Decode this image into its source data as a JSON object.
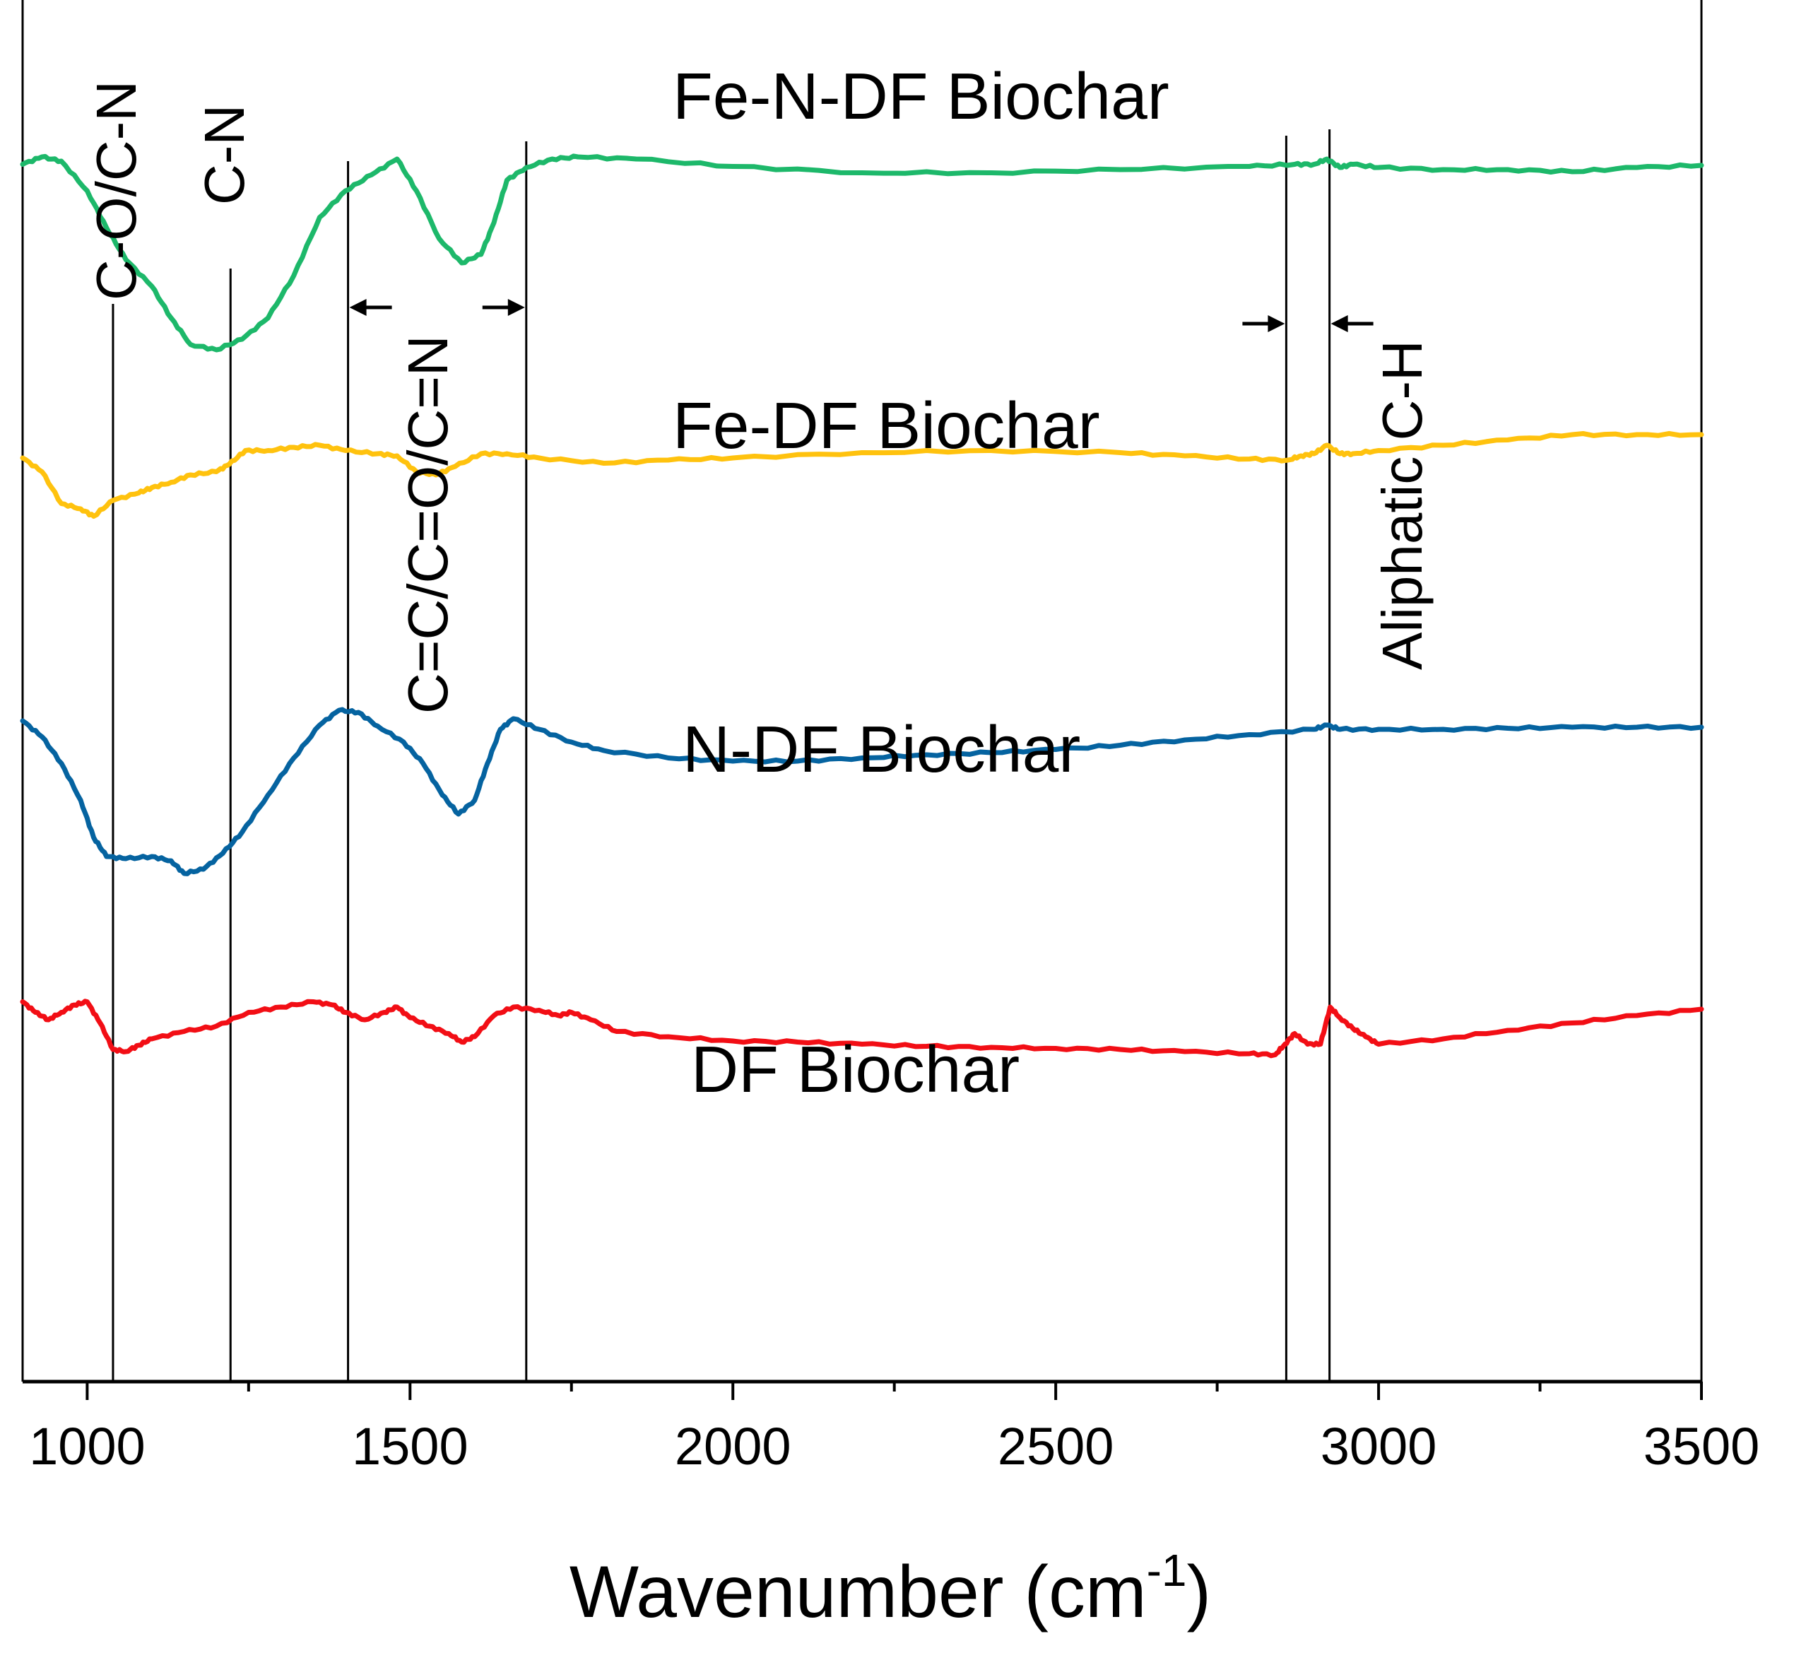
{
  "chart_data": {
    "type": "line",
    "title": "",
    "xlabel": "Wavenumber (cm",
    "xlabel_sup": "-1",
    "xlabel_close": ")",
    "ylabel": "",
    "xlim": [
      900,
      3500
    ],
    "x_ticks": [
      1000,
      1500,
      2000,
      2500,
      3000,
      3500
    ],
    "x_tick_labels": [
      "1000",
      "1500",
      "2000",
      "2500",
      "3000",
      "3500"
    ],
    "x_minor_step": 250,
    "y_axis_visible": false,
    "grid": false,
    "legend": "none",
    "series": [
      {
        "name": "Fe-N-DF Biochar",
        "color": "#1DB86A",
        "points": [
          [
            900,
            155
          ],
          [
            930,
            148
          ],
          [
            960,
            152
          ],
          [
            1000,
            180
          ],
          [
            1030,
            215
          ],
          [
            1060,
            245
          ],
          [
            1100,
            270
          ],
          [
            1130,
            300
          ],
          [
            1160,
            325
          ],
          [
            1200,
            330
          ],
          [
            1240,
            320
          ],
          [
            1280,
            300
          ],
          [
            1320,
            260
          ],
          [
            1360,
            205
          ],
          [
            1400,
            180
          ],
          [
            1440,
            165
          ],
          [
            1480,
            150
          ],
          [
            1510,
            180
          ],
          [
            1545,
            225
          ],
          [
            1580,
            248
          ],
          [
            1610,
            240
          ],
          [
            1630,
            210
          ],
          [
            1650,
            170
          ],
          [
            1680,
            158
          ],
          [
            1720,
            150
          ],
          [
            1760,
            148
          ],
          [
            1850,
            150
          ],
          [
            2000,
            157
          ],
          [
            2200,
            163
          ],
          [
            2400,
            163
          ],
          [
            2600,
            160
          ],
          [
            2800,
            157
          ],
          [
            2870,
            155
          ],
          [
            2900,
            155
          ],
          [
            2920,
            150
          ],
          [
            2940,
            158
          ],
          [
            2960,
            155
          ],
          [
            3000,
            158
          ],
          [
            3100,
            160
          ],
          [
            3200,
            160
          ],
          [
            3300,
            162
          ],
          [
            3400,
            158
          ],
          [
            3500,
            156
          ]
        ]
      },
      {
        "name": "Fe-DF Biochar",
        "color": "#FFC20E",
        "points": [
          [
            900,
            432
          ],
          [
            930,
            445
          ],
          [
            960,
            475
          ],
          [
            990,
            480
          ],
          [
            1010,
            487
          ],
          [
            1040,
            472
          ],
          [
            1080,
            465
          ],
          [
            1100,
            460
          ],
          [
            1130,
            455
          ],
          [
            1160,
            448
          ],
          [
            1200,
            445
          ],
          [
            1220,
            438
          ],
          [
            1245,
            425
          ],
          [
            1280,
            425
          ],
          [
            1320,
            422
          ],
          [
            1360,
            420
          ],
          [
            1400,
            425
          ],
          [
            1450,
            428
          ],
          [
            1480,
            430
          ],
          [
            1510,
            445
          ],
          [
            1540,
            448
          ],
          [
            1570,
            440
          ],
          [
            1610,
            428
          ],
          [
            1650,
            428
          ],
          [
            1700,
            432
          ],
          [
            1800,
            437
          ],
          [
            1900,
            434
          ],
          [
            2000,
            432
          ],
          [
            2200,
            427
          ],
          [
            2400,
            425
          ],
          [
            2600,
            427
          ],
          [
            2700,
            430
          ],
          [
            2800,
            433
          ],
          [
            2860,
            434
          ],
          [
            2880,
            430
          ],
          [
            2900,
            428
          ],
          [
            2920,
            420
          ],
          [
            2940,
            428
          ],
          [
            2960,
            428
          ],
          [
            3000,
            425
          ],
          [
            3100,
            420
          ],
          [
            3200,
            415
          ],
          [
            3300,
            410
          ],
          [
            3400,
            410
          ],
          [
            3500,
            410
          ]
        ]
      },
      {
        "name": "N-DF Biochar",
        "color": "#0563A0",
        "points": [
          [
            900,
            680
          ],
          [
            930,
            695
          ],
          [
            960,
            720
          ],
          [
            990,
            755
          ],
          [
            1010,
            790
          ],
          [
            1030,
            808
          ],
          [
            1060,
            810
          ],
          [
            1100,
            808
          ],
          [
            1130,
            812
          ],
          [
            1150,
            824
          ],
          [
            1180,
            820
          ],
          [
            1210,
            805
          ],
          [
            1240,
            785
          ],
          [
            1280,
            750
          ],
          [
            1320,
            715
          ],
          [
            1360,
            684
          ],
          [
            1390,
            670
          ],
          [
            1420,
            672
          ],
          [
            1450,
            685
          ],
          [
            1490,
            700
          ],
          [
            1520,
            720
          ],
          [
            1550,
            750
          ],
          [
            1575,
            768
          ],
          [
            1600,
            755
          ],
          [
            1620,
            720
          ],
          [
            1640,
            688
          ],
          [
            1660,
            678
          ],
          [
            1700,
            688
          ],
          [
            1750,
            700
          ],
          [
            1800,
            708
          ],
          [
            1900,
            715
          ],
          [
            2000,
            718
          ],
          [
            2100,
            718
          ],
          [
            2200,
            715
          ],
          [
            2300,
            712
          ],
          [
            2400,
            710
          ],
          [
            2500,
            707
          ],
          [
            2600,
            703
          ],
          [
            2700,
            698
          ],
          [
            2800,
            693
          ],
          [
            2900,
            688
          ],
          [
            2920,
            684
          ],
          [
            2940,
            688
          ],
          [
            3000,
            688
          ],
          [
            3100,
            688
          ],
          [
            3200,
            687
          ],
          [
            3300,
            686
          ],
          [
            3400,
            686
          ],
          [
            3500,
            686
          ]
        ]
      },
      {
        "name": "DF Biochar",
        "color": "#F20E15",
        "points": [
          [
            900,
            945
          ],
          [
            920,
            955
          ],
          [
            940,
            962
          ],
          [
            960,
            955
          ],
          [
            980,
            948
          ],
          [
            1000,
            945
          ],
          [
            1020,
            965
          ],
          [
            1040,
            990
          ],
          [
            1060,
            992
          ],
          [
            1080,
            986
          ],
          [
            1100,
            980
          ],
          [
            1150,
            973
          ],
          [
            1200,
            968
          ],
          [
            1250,
            955
          ],
          [
            1300,
            950
          ],
          [
            1350,
            945
          ],
          [
            1380,
            948
          ],
          [
            1400,
            955
          ],
          [
            1430,
            962
          ],
          [
            1460,
            955
          ],
          [
            1480,
            950
          ],
          [
            1500,
            960
          ],
          [
            1530,
            968
          ],
          [
            1560,
            975
          ],
          [
            1580,
            983
          ],
          [
            1600,
            978
          ],
          [
            1630,
            958
          ],
          [
            1660,
            950
          ],
          [
            1700,
            953
          ],
          [
            1730,
            958
          ],
          [
            1750,
            955
          ],
          [
            1780,
            962
          ],
          [
            1820,
            973
          ],
          [
            1900,
            978
          ],
          [
            2000,
            982
          ],
          [
            2100,
            983
          ],
          [
            2200,
            985
          ],
          [
            2300,
            987
          ],
          [
            2400,
            988
          ],
          [
            2500,
            989
          ],
          [
            2600,
            990
          ],
          [
            2700,
            992
          ],
          [
            2800,
            994
          ],
          [
            2840,
            995
          ],
          [
            2855,
            985
          ],
          [
            2870,
            975
          ],
          [
            2890,
            985
          ],
          [
            2910,
            985
          ],
          [
            2925,
            950
          ],
          [
            2940,
            960
          ],
          [
            2960,
            970
          ],
          [
            2980,
            978
          ],
          [
            3000,
            985
          ],
          [
            3100,
            980
          ],
          [
            3200,
            972
          ],
          [
            3300,
            965
          ],
          [
            3400,
            958
          ],
          [
            3500,
            952
          ]
        ]
      }
    ],
    "series_labels": [
      "Fe-N-DF Biochar",
      "Fe-DF Biochar",
      "N-DF Biochar",
      "DF Biochar"
    ],
    "reference_lines": [
      1040,
      1222,
      1404,
      1680,
      2857,
      2924
    ],
    "annotations": [
      {
        "text": "C-O/C-N",
        "x": 1040,
        "orientation": "vertical"
      },
      {
        "text": "C-N",
        "x": 1222,
        "orientation": "vertical"
      },
      {
        "text": "C=C/C=O/C=N",
        "x": 1542,
        "orientation": "vertical",
        "range": [
          1404,
          1680
        ]
      },
      {
        "text": "Aliphatic C-H",
        "x": 2957,
        "orientation": "vertical",
        "range": [
          2857,
          2924
        ]
      }
    ]
  }
}
